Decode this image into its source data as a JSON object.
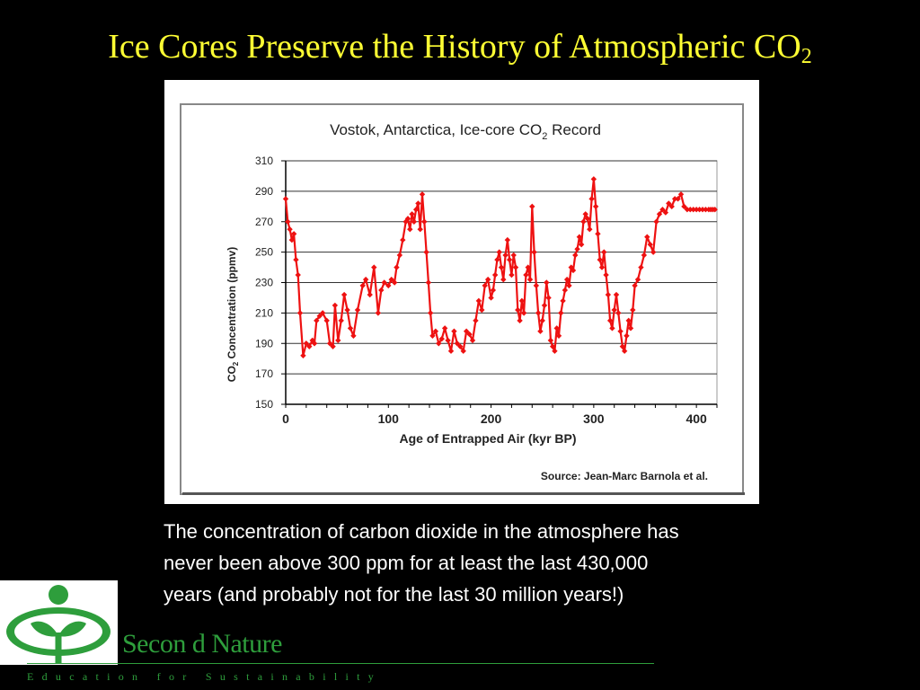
{
  "slide": {
    "title_main": "Ice Cores Preserve the History of Atmospheric CO",
    "title_sub": "2",
    "caption_lines": [
      "The concentration of carbon dioxide in the atmosphere has",
      "never been above 300 ppm for at least the last 430,000",
      "years (and probably not for the last 30 million years!)"
    ]
  },
  "branding": {
    "name": "Secon d Nature",
    "tagline": "Education for Sustainability",
    "logo_icon": "sprout-logo-icon",
    "color": "#2e9e3c"
  },
  "chart_data": {
    "type": "line",
    "title_main": "Vostok, Antarctica, Ice-core CO",
    "title_sub": "2",
    "title_end": " Record",
    "xlabel": "Age of Entrapped Air (kyr BP)",
    "ylabel_main": "CO",
    "ylabel_sub": "2",
    "ylabel_end": " Concentration (ppmv)",
    "xlim": [
      0,
      420
    ],
    "ylim": [
      150,
      310
    ],
    "xticks": [
      0,
      100,
      200,
      300,
      400
    ],
    "yticks": [
      150,
      170,
      190,
      210,
      230,
      250,
      270,
      290,
      310
    ],
    "grid": "horizontal",
    "source": "Source: Jean-Marc Barnola et al.",
    "line_color": "#ee1111",
    "series": [
      {
        "x": [
          0,
          2,
          4,
          6,
          8,
          10,
          12,
          14,
          17,
          20,
          23,
          26,
          28,
          30,
          33,
          36,
          40,
          43,
          46,
          48,
          51,
          54,
          57,
          60,
          63,
          66,
          70,
          75,
          78,
          82,
          86,
          90,
          93,
          96,
          100,
          103,
          106,
          108,
          111,
          114,
          117,
          119,
          121,
          123,
          125,
          127,
          129,
          131,
          133,
          135,
          137,
          139,
          141,
          143,
          146,
          149,
          152,
          155,
          158,
          161,
          164,
          167,
          170,
          173,
          176,
          179,
          182,
          185,
          188,
          191,
          194,
          197,
          200,
          202,
          204,
          206,
          208,
          210,
          212,
          214,
          216,
          218,
          220,
          222,
          224,
          226,
          228,
          230,
          232,
          234,
          236,
          238,
          240,
          242,
          244,
          246,
          248,
          250,
          252,
          254,
          256,
          258,
          260,
          262,
          264,
          266,
          268,
          270,
          272,
          274,
          276,
          278,
          280,
          282,
          284,
          286,
          288,
          290,
          292,
          294,
          296,
          298,
          300,
          302,
          304,
          306,
          308,
          310,
          312,
          314,
          316,
          318,
          320,
          322,
          324,
          326,
          328,
          330,
          332,
          334,
          336,
          338,
          340,
          343,
          346,
          349,
          352,
          355,
          358,
          361,
          364,
          367,
          370,
          373,
          376,
          379,
          382,
          385,
          388,
          391,
          394,
          397,
          400,
          403,
          406,
          409,
          412,
          414,
          416,
          418
        ],
        "values": [
          285,
          270,
          265,
          258,
          262,
          245,
          235,
          210,
          182,
          190,
          188,
          192,
          190,
          205,
          208,
          210,
          205,
          190,
          188,
          215,
          192,
          205,
          222,
          212,
          200,
          195,
          212,
          228,
          232,
          222,
          240,
          210,
          225,
          230,
          228,
          232,
          230,
          240,
          248,
          258,
          270,
          272,
          265,
          275,
          270,
          278,
          282,
          265,
          288,
          270,
          250,
          230,
          210,
          195,
          198,
          190,
          193,
          200,
          192,
          185,
          198,
          190,
          188,
          185,
          198,
          196,
          192,
          205,
          218,
          212,
          228,
          232,
          220,
          225,
          235,
          245,
          250,
          240,
          232,
          248,
          258,
          245,
          235,
          248,
          240,
          212,
          205,
          218,
          210,
          235,
          240,
          232,
          280,
          250,
          228,
          210,
          198,
          205,
          215,
          230,
          220,
          192,
          188,
          185,
          200,
          195,
          210,
          218,
          225,
          232,
          228,
          240,
          238,
          248,
          252,
          260,
          255,
          270,
          275,
          272,
          265,
          285,
          298,
          280,
          262,
          245,
          240,
          250,
          235,
          222,
          205,
          200,
          212,
          222,
          210,
          198,
          188,
          185,
          195,
          205,
          200,
          212,
          228,
          232,
          240,
          248,
          260,
          255,
          250,
          270,
          275,
          278,
          276,
          282,
          280,
          285,
          285,
          288,
          280,
          278,
          278,
          278,
          278,
          278,
          278,
          278,
          278,
          278,
          278,
          278
        ]
      }
    ]
  }
}
